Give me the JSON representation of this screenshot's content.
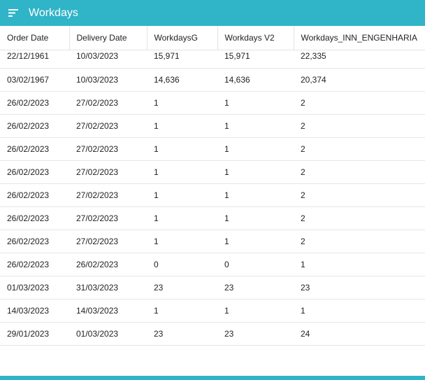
{
  "header": {
    "menu_icon": "menu-icon",
    "title": "Workdays"
  },
  "table": {
    "columns": [
      "Order Date",
      "Delivery Date",
      "WorkdaysG",
      "Workdays V2",
      "Workdays_INN_ENGENHARIA"
    ],
    "rows": [
      [
        "22/12/1961",
        "10/03/2023",
        "15,971",
        "15,971",
        "22,335"
      ],
      [
        "03/02/1967",
        "10/03/2023",
        "14,636",
        "14,636",
        "20,374"
      ],
      [
        "26/02/2023",
        "27/02/2023",
        "1",
        "1",
        "2"
      ],
      [
        "26/02/2023",
        "27/02/2023",
        "1",
        "1",
        "2"
      ],
      [
        "26/02/2023",
        "27/02/2023",
        "1",
        "1",
        "2"
      ],
      [
        "26/02/2023",
        "27/02/2023",
        "1",
        "1",
        "2"
      ],
      [
        "26/02/2023",
        "27/02/2023",
        "1",
        "1",
        "2"
      ],
      [
        "26/02/2023",
        "27/02/2023",
        "1",
        "1",
        "2"
      ],
      [
        "26/02/2023",
        "27/02/2023",
        "1",
        "1",
        "2"
      ],
      [
        "26/02/2023",
        "26/02/2023",
        "0",
        "0",
        "1"
      ],
      [
        "01/03/2023",
        "31/03/2023",
        "23",
        "23",
        "23"
      ],
      [
        "14/03/2023",
        "14/03/2023",
        "1",
        "1",
        "1"
      ],
      [
        "29/01/2023",
        "01/03/2023",
        "23",
        "23",
        "24"
      ]
    ]
  },
  "colors": {
    "accent": "#30b4c7"
  }
}
